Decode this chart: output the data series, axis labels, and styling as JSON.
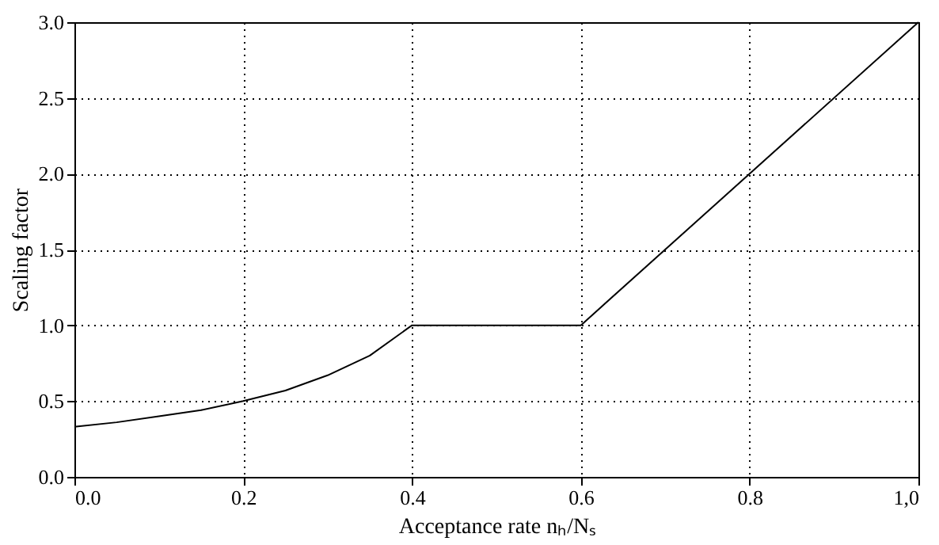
{
  "chart_data": {
    "type": "line",
    "xlabel": "Acceptance rate nₕ/Nₛ",
    "ylabel": "Scaling factor",
    "x": [
      0,
      0.05,
      0.1,
      0.15,
      0.2,
      0.25,
      0.3,
      0.35,
      0.4,
      0.6,
      1
    ],
    "series": [
      {
        "color": "#000000",
        "values": [
          0.33,
          0.36,
          0.4,
          0.44,
          0.5,
          0.57,
          0.67,
          0.8,
          1.0,
          1.0,
          3.0
        ]
      }
    ],
    "xlim": [
      0,
      1
    ],
    "ylim": [
      0,
      3
    ],
    "xticks": [
      {
        "value": 0,
        "label": "0.0"
      },
      {
        "value": 0.2,
        "label": "0.2"
      },
      {
        "value": 0.4,
        "label": "0.4"
      },
      {
        "value": 0.6,
        "label": "0.6"
      },
      {
        "value": 0.8,
        "label": "0.8"
      },
      {
        "value": 1,
        "label": "1,0"
      }
    ],
    "yticks": [
      {
        "value": 0,
        "label": "0.0"
      },
      {
        "value": 0.5,
        "label": "0.5"
      },
      {
        "value": 1,
        "label": "1.0"
      },
      {
        "value": 1.5,
        "label": "1.5"
      },
      {
        "value": 2,
        "label": "2.0"
      },
      {
        "value": 2.5,
        "label": "2.5"
      },
      {
        "value": 3,
        "label": "3.0"
      }
    ],
    "grid": true,
    "line_style": "solid",
    "legend": false,
    "marker": "none"
  }
}
